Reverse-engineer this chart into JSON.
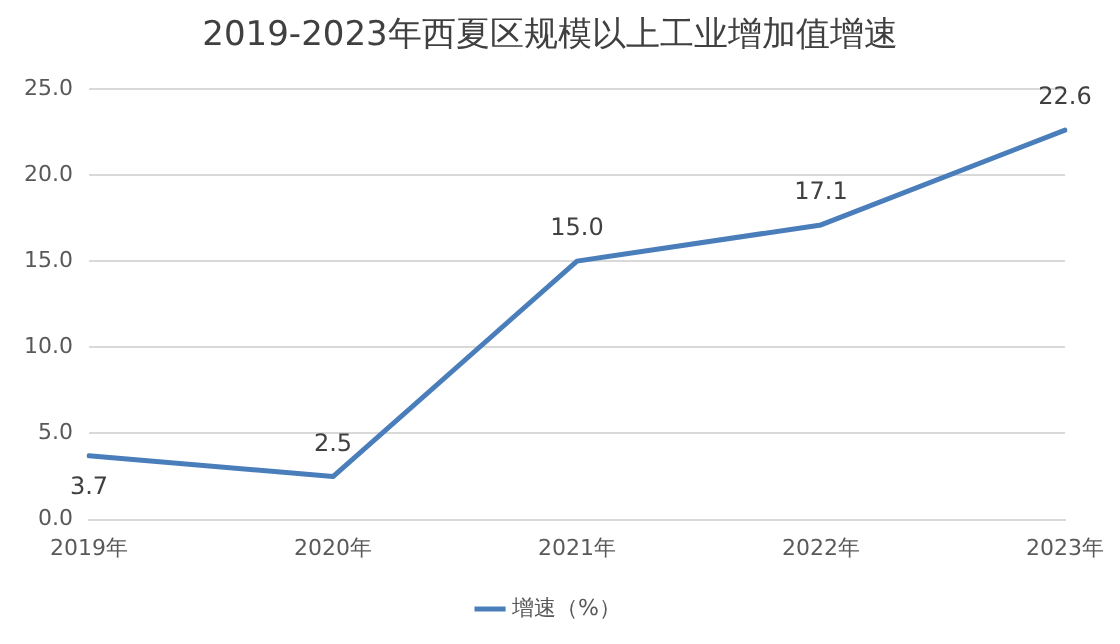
{
  "chart_data": {
    "type": "line",
    "title": "2019-2023年西夏区规模以上工业增加值增速",
    "categories": [
      "2019年",
      "2020年",
      "2021年",
      "2022年",
      "2023年"
    ],
    "series": [
      {
        "name": "增速（%）",
        "color": "#4a7ebb",
        "values": [
          3.7,
          2.5,
          15.0,
          17.1,
          22.6
        ],
        "value_labels": [
          "3.7",
          "2.5",
          "15.0",
          "17.1",
          "22.6"
        ]
      }
    ],
    "ylim": [
      0,
      25
    ],
    "yticks": [
      {
        "value": 0,
        "label": "0.0"
      },
      {
        "value": 5,
        "label": "5.0"
      },
      {
        "value": 10,
        "label": "10.0"
      },
      {
        "value": 15,
        "label": "15.0"
      },
      {
        "value": 20,
        "label": "20.0"
      },
      {
        "value": 25,
        "label": "25.0"
      }
    ],
    "grid": "y",
    "legend": "bottom",
    "marker": "none",
    "line_style": "solid"
  }
}
